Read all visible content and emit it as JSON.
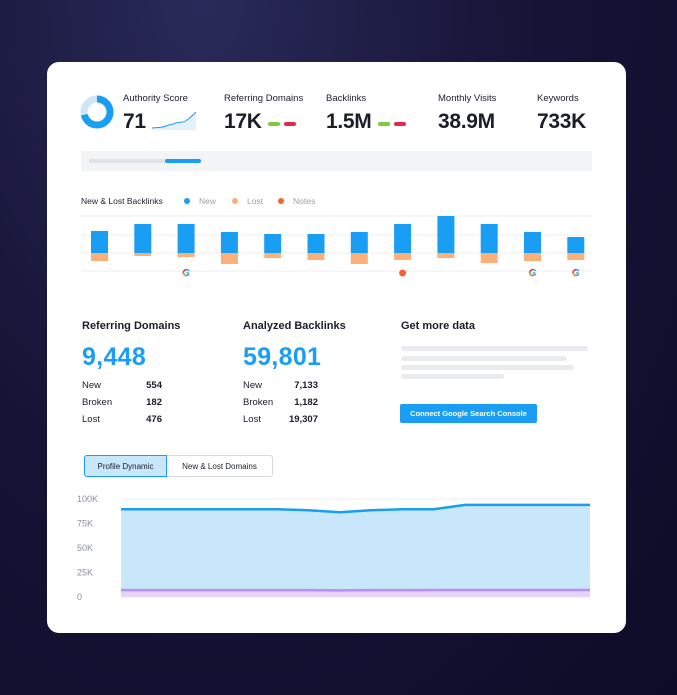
{
  "colors": {
    "accent": "#1a9ef4",
    "new": "#1a9ef4",
    "lost": "#fbb07a",
    "notes": "#f4662f",
    "positive": "#7ec93c",
    "negative": "#e5284a",
    "area_fill": "#c9e7fb",
    "lower_band": "#b98ff7"
  },
  "metrics": [
    {
      "label": "Authority Score",
      "value": "71"
    },
    {
      "label": "Referring Domains",
      "value": "17K"
    },
    {
      "label": "Backlinks",
      "value": "1.5M"
    },
    {
      "label": "Monthly Visits",
      "value": "38.9M"
    },
    {
      "label": "Keywords",
      "value": "733K"
    }
  ],
  "authority_ring_fraction": 0.71,
  "backlinks_chart": {
    "title": "New & Lost Backlinks",
    "legend": [
      {
        "name": "New",
        "color": "#1a9ef4",
        "icon": "dot-icon"
      },
      {
        "name": "Lost",
        "color": "#fbb07a",
        "icon": "dot-icon"
      },
      {
        "name": "Notes",
        "color": "#f4662f",
        "icon": "dot-icon"
      }
    ]
  },
  "chart_data": [
    {
      "type": "bar",
      "title": "New & Lost Backlinks",
      "series": [
        {
          "name": "New",
          "values": [
            22,
            29,
            29,
            21,
            19,
            19,
            21,
            29,
            37,
            29,
            21,
            16
          ]
        },
        {
          "name": "Lost",
          "values": [
            8,
            3,
            4,
            11,
            5,
            7,
            11,
            7,
            5,
            10,
            8,
            7
          ]
        }
      ],
      "annotations": [
        {
          "index": 2,
          "icon": "google-icon"
        },
        {
          "index": 7,
          "icon": "notes-dot-icon"
        },
        {
          "index": 10,
          "icon": "google-icon"
        },
        {
          "index": 11,
          "icon": "google-icon"
        }
      ]
    },
    {
      "type": "area",
      "y_ticks": [
        "100K",
        "75K",
        "50K",
        "25K",
        "0"
      ],
      "ylim": [
        0,
        100000
      ],
      "series": [
        {
          "values": [
            89500,
            89500,
            89500,
            89500,
            89500,
            89500,
            88500,
            86500,
            88500,
            89500,
            89500,
            94000,
            94000,
            94000,
            94000,
            94000
          ]
        },
        {
          "values": [
            7000,
            7000,
            7000,
            7000,
            7000,
            7000,
            7000,
            6800,
            7000,
            7000,
            7200,
            7200,
            7200,
            7200,
            7200,
            7200
          ]
        }
      ]
    }
  ],
  "referring_domains": {
    "title": "Referring Domains",
    "total": "9,448",
    "rows": [
      {
        "label": "New",
        "value": "554"
      },
      {
        "label": "Broken",
        "value": "182"
      },
      {
        "label": "Lost",
        "value": "476"
      }
    ]
  },
  "analyzed_backlinks": {
    "title": "Analyzed Backlinks",
    "total": "59,801",
    "rows": [
      {
        "label": "New",
        "value": "7,133"
      },
      {
        "label": "Broken",
        "value": "1,182"
      },
      {
        "label": "Lost",
        "value": "19,307"
      }
    ]
  },
  "get_more_data": {
    "title": "Get more data",
    "button_label": "Connect Google Search Console"
  },
  "tabs": [
    {
      "label": "Profile Dynamic",
      "active": true
    },
    {
      "label": "New & Lost Domains",
      "active": false
    }
  ]
}
